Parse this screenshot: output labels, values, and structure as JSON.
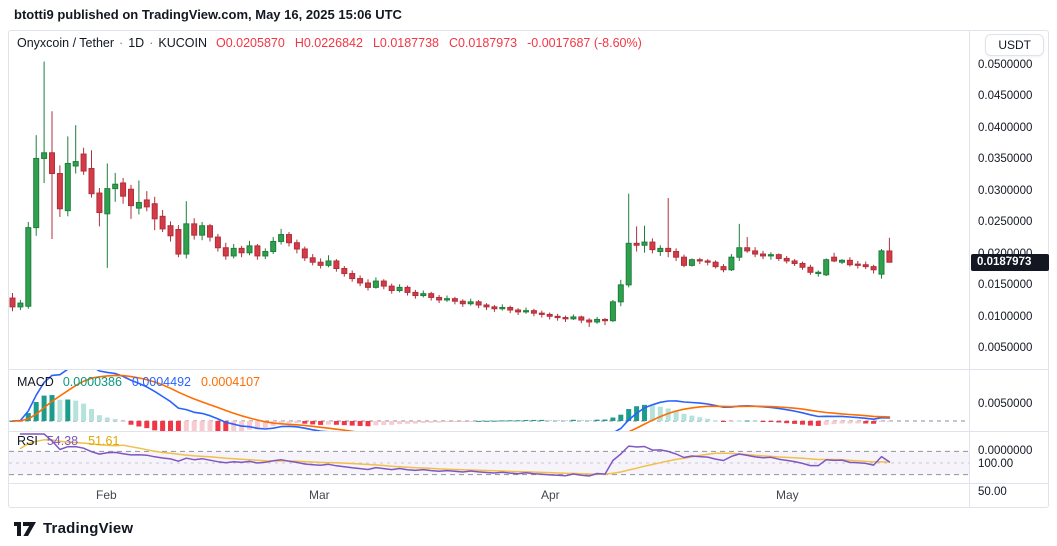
{
  "header": {
    "published_line": "btotti9 published on TradingView.com, May 16, 2025 15:06 UTC"
  },
  "symbol_legend": {
    "title": "Onyxcoin / Tether",
    "separator": "·",
    "interval": "1D",
    "exchange": "KUCOIN",
    "ohlc_items": [
      "O0.0205870",
      "H0.0226842",
      "L0.0187738",
      "C0.0187973",
      "-0.0017687 (-8.60%)"
    ],
    "ohlc_color": "#F23645"
  },
  "price_scale": {
    "currency_button": "USDT",
    "ticks": [
      "0.0500000",
      "0.0450000",
      "0.0400000",
      "0.0350000",
      "0.0300000",
      "0.0250000",
      "0.0200000",
      "0.0150000",
      "0.0100000",
      "0.0050000"
    ],
    "tick_values": [
      0.05,
      0.045,
      0.04,
      0.035,
      0.03,
      0.025,
      0.02,
      0.015,
      0.01,
      0.005
    ],
    "last_price_label": "0.0187973",
    "last_price_value": 0.0187973
  },
  "macd_panel": {
    "label": "MACD",
    "values": [
      {
        "text": "0.0000386",
        "color": "#089981"
      },
      {
        "text": "0.0004492",
        "color": "#2962FF"
      },
      {
        "text": "0.0004107",
        "color": "#FF6D00"
      }
    ],
    "ticks": [
      "0.0050000",
      "0.0000000"
    ],
    "tick_values": [
      0.005,
      0
    ],
    "params": {
      "fast": 12,
      "slow": 26,
      "signal": 9
    }
  },
  "rsi_panel": {
    "label": "RSI",
    "values": [
      {
        "text": "54.38",
        "color": "#7E57C2"
      },
      {
        "text": "51.61",
        "color": "#E0A800"
      }
    ],
    "ticks": [
      "100.00",
      "50.00"
    ],
    "tick_values": [
      100,
      50
    ],
    "levels": [
      70,
      50,
      30
    ],
    "params": {
      "length": 14,
      "ma_length": 14
    }
  },
  "time_axis": {
    "months": [
      "Feb",
      "Mar",
      "Apr",
      "May"
    ]
  },
  "footer": {
    "brand": "TradingView"
  },
  "colors": {
    "up": "#2FA14D",
    "up_border": "#1E7E3E",
    "down": "#D53A47",
    "down_border": "#B02F3A",
    "macd_line": "#2962FF",
    "macd_signal": "#FF6D00",
    "macd_pos_strong": "#1B9C8C",
    "macd_pos_weak": "#B6E2DC",
    "macd_neg_strong": "#F23645",
    "macd_neg_weak": "#F9CBD0",
    "rsi_line": "#7E57C2",
    "rsi_ma": "#F0C04A",
    "rsi_band": "#7E57C2",
    "level_dash": "#90939C",
    "level_dash_light": "#C6C9D0",
    "zero_dash": "#8A8E98",
    "badge_bg": "#131722",
    "axis_text": "#131722",
    "border": "#E0E3EB"
  },
  "chart_data": [
    {
      "type": "candlestick",
      "title": "Onyxcoin / Tether · 1D · KUCOIN",
      "ylabel": "price (USDT)",
      "ylim": [
        0.005,
        0.052
      ],
      "x_months": [
        "Feb",
        "Mar",
        "Apr",
        "May"
      ],
      "last_close": 0.0187973,
      "ohlc_format": [
        "open",
        "high",
        "low",
        "close"
      ],
      "ohlc": [
        [
          0.0131,
          0.0139,
          0.011,
          0.0117
        ],
        [
          0.0117,
          0.0128,
          0.0112,
          0.0123
        ],
        [
          0.0118,
          0.0252,
          0.0114,
          0.0243
        ],
        [
          0.0243,
          0.039,
          0.023,
          0.0353
        ],
        [
          0.0353,
          0.0507,
          0.0314,
          0.0362
        ],
        [
          0.0362,
          0.0428,
          0.0225,
          0.0329
        ],
        [
          0.0329,
          0.0342,
          0.026,
          0.0273
        ],
        [
          0.027,
          0.0388,
          0.0261,
          0.0345
        ],
        [
          0.0341,
          0.0406,
          0.0329,
          0.0348
        ],
        [
          0.036,
          0.037,
          0.0327,
          0.0333
        ],
        [
          0.0337,
          0.0366,
          0.0291,
          0.0297
        ],
        [
          0.0298,
          0.0306,
          0.0245,
          0.0267
        ],
        [
          0.0265,
          0.0345,
          0.0179,
          0.0305
        ],
        [
          0.0305,
          0.033,
          0.0284,
          0.0312
        ],
        [
          0.0314,
          0.0322,
          0.0281,
          0.0293
        ],
        [
          0.0304,
          0.0311,
          0.0257,
          0.0278
        ],
        [
          0.0274,
          0.0318,
          0.0264,
          0.0283
        ],
        [
          0.0287,
          0.0301,
          0.0269,
          0.0276
        ],
        [
          0.0281,
          0.0292,
          0.0239,
          0.0257
        ],
        [
          0.0261,
          0.0271,
          0.0236,
          0.0241
        ],
        [
          0.0246,
          0.0253,
          0.0221,
          0.023
        ],
        [
          0.024,
          0.0247,
          0.0196,
          0.0201
        ],
        [
          0.0201,
          0.0285,
          0.0194,
          0.0249
        ],
        [
          0.0249,
          0.0258,
          0.0224,
          0.0231
        ],
        [
          0.0231,
          0.0252,
          0.0223,
          0.0246
        ],
        [
          0.0246,
          0.0249,
          0.0221,
          0.0228
        ],
        [
          0.0228,
          0.0233,
          0.0205,
          0.0211
        ],
        [
          0.0211,
          0.0219,
          0.0192,
          0.0198
        ],
        [
          0.0198,
          0.0217,
          0.0194,
          0.021
        ],
        [
          0.021,
          0.0214,
          0.0196,
          0.0203
        ],
        [
          0.0203,
          0.0222,
          0.0199,
          0.0214
        ],
        [
          0.0214,
          0.0217,
          0.0192,
          0.0198
        ],
        [
          0.0198,
          0.021,
          0.0193,
          0.0205
        ],
        [
          0.0205,
          0.0228,
          0.0201,
          0.0221
        ],
        [
          0.0221,
          0.0241,
          0.0216,
          0.0232
        ],
        [
          0.0232,
          0.0236,
          0.0213,
          0.0219
        ],
        [
          0.0219,
          0.0224,
          0.0202,
          0.0209
        ],
        [
          0.0209,
          0.0213,
          0.019,
          0.0195
        ],
        [
          0.0195,
          0.0201,
          0.0183,
          0.0188
        ],
        [
          0.0188,
          0.0194,
          0.0178,
          0.0183
        ],
        [
          0.0183,
          0.0199,
          0.018,
          0.019
        ],
        [
          0.019,
          0.0193,
          0.0173,
          0.0178
        ],
        [
          0.0178,
          0.0182,
          0.0165,
          0.017
        ],
        [
          0.017,
          0.0175,
          0.0157,
          0.0162
        ],
        [
          0.0162,
          0.0167,
          0.015,
          0.0155
        ],
        [
          0.0155,
          0.0161,
          0.0143,
          0.0148
        ],
        [
          0.0148,
          0.0164,
          0.0146,
          0.0158
        ],
        [
          0.0158,
          0.0161,
          0.0145,
          0.015
        ],
        [
          0.015,
          0.0154,
          0.0138,
          0.0143
        ],
        [
          0.0143,
          0.0153,
          0.014,
          0.0148
        ],
        [
          0.0148,
          0.0151,
          0.0135,
          0.014
        ],
        [
          0.014,
          0.0144,
          0.013,
          0.0135
        ],
        [
          0.0135,
          0.0143,
          0.0132,
          0.0138
        ],
        [
          0.0138,
          0.0141,
          0.0127,
          0.0132
        ],
        [
          0.0132,
          0.0136,
          0.0123,
          0.0128
        ],
        [
          0.0128,
          0.0135,
          0.0125,
          0.013
        ],
        [
          0.013,
          0.0133,
          0.0121,
          0.0126
        ],
        [
          0.0126,
          0.0129,
          0.0117,
          0.0122
        ],
        [
          0.0122,
          0.013,
          0.0119,
          0.0125
        ],
        [
          0.0125,
          0.0128,
          0.0115,
          0.012
        ],
        [
          0.012,
          0.0123,
          0.0112,
          0.0117
        ],
        [
          0.0117,
          0.012,
          0.0109,
          0.0114
        ],
        [
          0.0114,
          0.0121,
          0.0111,
          0.0116
        ],
        [
          0.0116,
          0.0119,
          0.0107,
          0.0112
        ],
        [
          0.0112,
          0.0115,
          0.0104,
          0.0109
        ],
        [
          0.0109,
          0.0116,
          0.0106,
          0.0111
        ],
        [
          0.0111,
          0.0114,
          0.0102,
          0.0107
        ],
        [
          0.0107,
          0.0111,
          0.01,
          0.0105
        ],
        [
          0.0105,
          0.0108,
          0.0097,
          0.0102
        ],
        [
          0.0102,
          0.0106,
          0.0095,
          0.01
        ],
        [
          0.01,
          0.0103,
          0.0093,
          0.0098
        ],
        [
          0.0098,
          0.0105,
          0.0096,
          0.0101
        ],
        [
          0.0101,
          0.0103,
          0.0091,
          0.0096
        ],
        [
          0.0096,
          0.0099,
          0.0085,
          0.0093
        ],
        [
          0.0093,
          0.0101,
          0.009,
          0.0097
        ],
        [
          0.0097,
          0.0099,
          0.0088,
          0.0095
        ],
        [
          0.0095,
          0.0128,
          0.0093,
          0.0125
        ],
        [
          0.0125,
          0.016,
          0.0118,
          0.0152
        ],
        [
          0.0152,
          0.0297,
          0.0148,
          0.0218
        ],
        [
          0.0218,
          0.0245,
          0.0205,
          0.0215
        ],
        [
          0.0215,
          0.0246,
          0.0203,
          0.022
        ],
        [
          0.022,
          0.0226,
          0.0202,
          0.0208
        ],
        [
          0.0205,
          0.0215,
          0.0198,
          0.021
        ],
        [
          0.021,
          0.029,
          0.0196,
          0.0205
        ],
        [
          0.0205,
          0.021,
          0.019,
          0.0196
        ],
        [
          0.0196,
          0.02,
          0.018,
          0.0183
        ],
        [
          0.0183,
          0.0194,
          0.0181,
          0.0192
        ],
        [
          0.0192,
          0.0195,
          0.0185,
          0.019
        ],
        [
          0.019,
          0.0193,
          0.0183,
          0.0188
        ],
        [
          0.0188,
          0.0191,
          0.0178,
          0.0181
        ],
        [
          0.0181,
          0.0185,
          0.0172,
          0.0176
        ],
        [
          0.0176,
          0.0201,
          0.0174,
          0.0196
        ],
        [
          0.0196,
          0.0249,
          0.019,
          0.0211
        ],
        [
          0.0211,
          0.0228,
          0.0203,
          0.0206
        ],
        [
          0.0206,
          0.0212,
          0.0196,
          0.0201
        ],
        [
          0.0201,
          0.0206,
          0.0193,
          0.0198
        ],
        [
          0.0198,
          0.0204,
          0.0192,
          0.02
        ],
        [
          0.02,
          0.0202,
          0.019,
          0.0194
        ],
        [
          0.0194,
          0.0198,
          0.0186,
          0.019
        ],
        [
          0.019,
          0.0193,
          0.0182,
          0.0186
        ],
        [
          0.0186,
          0.0189,
          0.0176,
          0.018
        ],
        [
          0.018,
          0.0184,
          0.0168,
          0.0172
        ],
        [
          0.017,
          0.0175,
          0.0165,
          0.0172
        ],
        [
          0.0168,
          0.0194,
          0.0166,
          0.0192
        ],
        [
          0.0196,
          0.0203,
          0.0188,
          0.019
        ],
        [
          0.0188,
          0.0193,
          0.0185,
          0.0191
        ],
        [
          0.0191,
          0.0196,
          0.0181,
          0.0184
        ],
        [
          0.0185,
          0.019,
          0.0178,
          0.0183
        ],
        [
          0.0184,
          0.0189,
          0.0177,
          0.0181
        ],
        [
          0.0181,
          0.0184,
          0.017,
          0.0176
        ],
        [
          0.0169,
          0.0209,
          0.0162,
          0.0206
        ],
        [
          0.020587,
          0.0226842,
          0.0187738,
          0.0187973
        ]
      ]
    },
    {
      "type": "bar",
      "name": "MACD 12 26 close 9 (derived from ohlc closes)",
      "current_values": {
        "histogram": 3.86e-05,
        "macd": 0.0004492,
        "signal": 0.0004107
      },
      "ylim": [
        -0.0022,
        0.0052
      ],
      "y_ticks": [
        0.005,
        0
      ]
    },
    {
      "type": "line",
      "name": "RSI 14 with SMA 14 (derived from ohlc closes)",
      "current_values": {
        "rsi": 54.38,
        "rsi_ma": 51.61
      },
      "ylim": [
        0,
        100
      ],
      "y_ticks": [
        100,
        50
      ],
      "levels": [
        70,
        50,
        30
      ]
    }
  ]
}
